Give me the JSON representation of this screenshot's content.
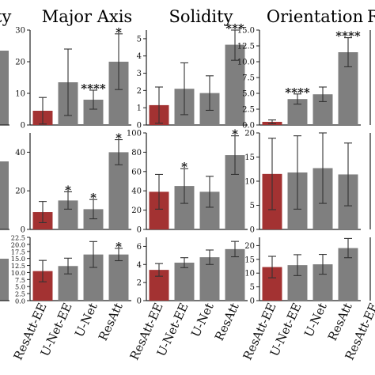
{
  "figure": {
    "columns": [
      {
        "title": "ty",
        "partial": true
      },
      {
        "title": "Major Axis"
      },
      {
        "title": "Solidity"
      },
      {
        "title": "Orientation"
      },
      {
        "title": "R",
        "partial": true
      }
    ],
    "x_tick_labels": [
      "ResAtt-EE",
      "U-Net-EE",
      "U-Net",
      "ResAtt"
    ],
    "colors": {
      "highlight": "#a33232",
      "bar": "#7f7f7f",
      "axis": "#222222"
    }
  },
  "chart_data": [
    {
      "type": "bar",
      "panel": "row1-major-axis",
      "categories": [
        "ResAtt-EE",
        "U-Net-EE",
        "U-Net",
        "ResAtt"
      ],
      "values": [
        4.5,
        13.5,
        8,
        20
      ],
      "errors": [
        4.2,
        10.5,
        3,
        8.8
      ],
      "significance": [
        "",
        "",
        "****",
        "*"
      ],
      "ylim": [
        0,
        30
      ],
      "yticks": [
        0,
        10,
        20,
        30
      ],
      "title": "Major Axis"
    },
    {
      "type": "bar",
      "panel": "row1-solidity",
      "categories": [
        "ResAtt-EE",
        "U-Net-EE",
        "U-Net",
        "ResAtt"
      ],
      "values": [
        1.15,
        2.1,
        1.85,
        4.65
      ],
      "errors": [
        1.05,
        1.5,
        1.0,
        0.9
      ],
      "significance": [
        "",
        "",
        "",
        "***"
      ],
      "ylim": [
        0,
        5.5
      ],
      "yticks": [
        0,
        1,
        2,
        3,
        4,
        5
      ],
      "title": "Solidity"
    },
    {
      "type": "bar",
      "panel": "row1-orientation",
      "categories": [
        "ResAtt-EE",
        "U-Net-EE",
        "U-Net",
        "ResAtt"
      ],
      "values": [
        0.5,
        4.1,
        4.85,
        11.5
      ],
      "errors": [
        0.3,
        0.8,
        1.15,
        2.3
      ],
      "significance": [
        "",
        "****",
        "",
        "****"
      ],
      "ylim": [
        0,
        15
      ],
      "yticks": [
        0,
        2.5,
        5,
        7.5,
        10,
        12.5,
        15
      ],
      "ytick_labels": [
        "0.0",
        "2.5",
        "5.0",
        "7.5",
        "10.0",
        "12.5",
        "15.0"
      ],
      "title": "Orientation"
    },
    {
      "type": "bar",
      "panel": "row2-major-axis",
      "categories": [
        "ResAtt-EE",
        "U-Net-EE",
        "U-Net",
        "ResAtt"
      ],
      "values": [
        9,
        15,
        10.5,
        40
      ],
      "errors": [
        5.5,
        4.5,
        5,
        6.5
      ],
      "significance": [
        "",
        "*",
        "*",
        "*"
      ],
      "ylim": [
        0,
        50
      ],
      "yticks": [
        0,
        20,
        40
      ],
      "title": ""
    },
    {
      "type": "bar",
      "panel": "row2-solidity",
      "categories": [
        "ResAtt-EE",
        "U-Net-EE",
        "U-Net",
        "ResAtt"
      ],
      "values": [
        39,
        45,
        39,
        77
      ],
      "errors": [
        18,
        18,
        16,
        20
      ],
      "significance": [
        "",
        "*",
        "",
        "*"
      ],
      "ylim": [
        0,
        100
      ],
      "yticks": [
        0,
        20,
        40,
        60,
        80,
        100
      ],
      "title": ""
    },
    {
      "type": "bar",
      "panel": "row2-orientation",
      "categories": [
        "ResAtt-EE",
        "U-Net-EE",
        "U-Net",
        "ResAtt"
      ],
      "values": [
        11.5,
        11.8,
        12.7,
        11.4
      ],
      "errors": [
        7.4,
        7.6,
        7.3,
        6.5
      ],
      "significance": [
        "",
        "",
        "",
        ""
      ],
      "ylim": [
        0,
        20
      ],
      "yticks": [
        0,
        5,
        10,
        15,
        20
      ],
      "title": ""
    },
    {
      "type": "bar",
      "panel": "row3-major-axis",
      "categories": [
        "ResAtt-EE",
        "U-Net-EE",
        "U-Net",
        "ResAtt"
      ],
      "values": [
        10.5,
        12.3,
        16.4,
        16.4
      ],
      "errors": [
        3.8,
        2.8,
        4.6,
        2.2
      ],
      "significance": [
        "",
        "",
        "",
        "*"
      ],
      "ylim": [
        0,
        22.5
      ],
      "yticks": [
        0,
        2.5,
        5,
        7.5,
        10,
        12.5,
        15,
        17.5,
        20,
        22.5
      ],
      "ytick_labels": [
        "0.0",
        "2.5",
        "5.0",
        "7.5",
        "10.0",
        "12.5",
        "15.0",
        "17.5",
        "20.0",
        "22.5"
      ],
      "title": ""
    },
    {
      "type": "bar",
      "panel": "row3-solidity",
      "categories": [
        "ResAtt-EE",
        "U-Net-EE",
        "U-Net",
        "ResAtt"
      ],
      "values": [
        3.4,
        4.2,
        4.8,
        5.7
      ],
      "errors": [
        0.7,
        0.55,
        0.8,
        0.85
      ],
      "significance": [
        "",
        "",
        "",
        ""
      ],
      "ylim": [
        0,
        7
      ],
      "yticks": [
        0,
        2,
        4,
        6
      ],
      "title": ""
    },
    {
      "type": "bar",
      "panel": "row3-orientation",
      "categories": [
        "ResAtt-EE",
        "U-Net-EE",
        "U-Net",
        "ResAtt"
      ],
      "values": [
        12.2,
        12.9,
        13.2,
        19.1
      ],
      "errors": [
        3.9,
        3.8,
        3.6,
        3.5
      ],
      "significance": [
        "",
        "",
        "",
        ""
      ],
      "ylim": [
        0,
        23
      ],
      "yticks": [
        0,
        5,
        10,
        15,
        20
      ],
      "title": ""
    }
  ]
}
